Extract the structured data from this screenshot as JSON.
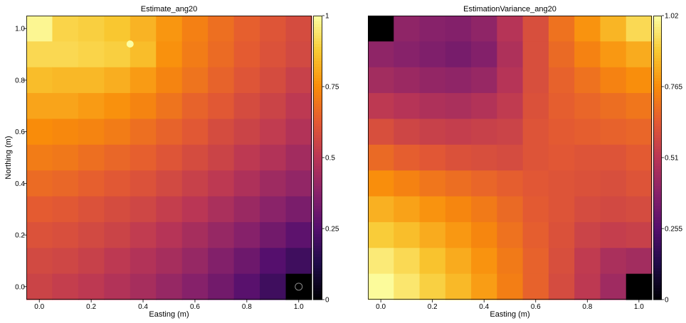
{
  "chart_data": [
    {
      "type": "heatmap",
      "title": "Estimate_ang20",
      "xlabel": "Easting (m)",
      "ylabel": "Northing (m)",
      "colormap": "inferno",
      "x_cell_centers": [
        0.0,
        0.1,
        0.2,
        0.3,
        0.4,
        0.5,
        0.6,
        0.7,
        0.8,
        0.9,
        1.0
      ],
      "y_cell_centers": [
        1.0,
        0.9,
        0.8,
        0.7,
        0.6,
        0.5,
        0.4,
        0.3,
        0.2,
        0.1,
        0.0
      ],
      "xlim": [
        -0.05,
        1.05
      ],
      "ylim": [
        -0.05,
        1.05
      ],
      "x_ticks": [
        0.0,
        0.2,
        0.4,
        0.6,
        0.8,
        1.0
      ],
      "x_tick_labels": [
        "0.0",
        "0.2",
        "0.4",
        "0.6",
        "0.8",
        "1.0"
      ],
      "y_ticks": [
        0.0,
        0.2,
        0.4,
        0.6,
        0.8,
        1.0
      ],
      "y_tick_labels": [
        "0.0",
        "0.2",
        "0.4",
        "0.6",
        "0.8",
        "1.0"
      ],
      "colorbar_range": [
        0,
        1
      ],
      "colorbar_ticks": [
        0,
        0.25,
        0.5,
        0.75,
        1
      ],
      "colorbar_tick_labels": [
        "0",
        "0.25",
        "0.5",
        "0.75",
        "1"
      ],
      "values": [
        [
          0.98,
          0.9,
          0.89,
          0.87,
          0.83,
          0.77,
          0.72,
          0.68,
          0.64,
          0.61,
          0.58
        ],
        [
          0.91,
          0.91,
          0.9,
          0.89,
          0.85,
          0.76,
          0.71,
          0.67,
          0.63,
          0.6,
          0.57
        ],
        [
          0.85,
          0.84,
          0.84,
          0.82,
          0.78,
          0.73,
          0.69,
          0.65,
          0.61,
          0.58,
          0.54
        ],
        [
          0.8,
          0.8,
          0.78,
          0.76,
          0.73,
          0.69,
          0.65,
          0.62,
          0.58,
          0.55,
          0.51
        ],
        [
          0.75,
          0.74,
          0.73,
          0.71,
          0.68,
          0.65,
          0.62,
          0.58,
          0.55,
          0.52,
          0.48
        ],
        [
          0.71,
          0.7,
          0.68,
          0.66,
          0.64,
          0.61,
          0.58,
          0.55,
          0.51,
          0.48,
          0.44
        ],
        [
          0.67,
          0.66,
          0.64,
          0.62,
          0.6,
          0.57,
          0.54,
          0.51,
          0.47,
          0.43,
          0.4
        ],
        [
          0.63,
          0.62,
          0.6,
          0.58,
          0.56,
          0.53,
          0.5,
          0.46,
          0.42,
          0.38,
          0.34
        ],
        [
          0.6,
          0.59,
          0.57,
          0.55,
          0.52,
          0.49,
          0.45,
          0.41,
          0.37,
          0.32,
          0.27
        ],
        [
          0.57,
          0.56,
          0.54,
          0.51,
          0.48,
          0.45,
          0.41,
          0.36,
          0.31,
          0.25,
          0.2
        ],
        [
          0.55,
          0.53,
          0.51,
          0.48,
          0.45,
          0.41,
          0.37,
          0.32,
          0.26,
          0.2,
          null
        ]
      ],
      "markers": [
        {
          "x": 0.35,
          "y": 0.94,
          "style": "filled",
          "color": "#fcffa4"
        },
        {
          "x": 1.0,
          "y": 0.0,
          "style": "hollow",
          "color": "#888888"
        }
      ]
    },
    {
      "type": "heatmap",
      "title": "EstimationVariance_ang20",
      "xlabel": "Easting (m)",
      "ylabel": "",
      "colormap": "inferno",
      "x_cell_centers": [
        0.0,
        0.1,
        0.2,
        0.3,
        0.4,
        0.5,
        0.6,
        0.7,
        0.8,
        0.9,
        1.0
      ],
      "y_cell_centers": [
        1.0,
        0.9,
        0.8,
        0.7,
        0.6,
        0.5,
        0.4,
        0.3,
        0.2,
        0.1,
        0.0
      ],
      "xlim": [
        -0.05,
        1.05
      ],
      "ylim": [
        -0.05,
        1.05
      ],
      "x_ticks": [
        0.0,
        0.2,
        0.4,
        0.6,
        0.8,
        1.0
      ],
      "x_tick_labels": [
        "0.0",
        "0.2",
        "0.4",
        "0.6",
        "0.8",
        "1.0"
      ],
      "y_ticks": [],
      "y_tick_labels": [],
      "colorbar_range": [
        0,
        1.02
      ],
      "colorbar_ticks": [
        0,
        0.255,
        0.51,
        0.765,
        1.02
      ],
      "colorbar_tick_labels": [
        "0",
        "0.255",
        "0.51",
        "0.765",
        "1.02"
      ],
      "values": [
        [
          null,
          0.4,
          0.38,
          0.37,
          0.4,
          0.5,
          0.6,
          0.7,
          0.78,
          0.85,
          0.93
        ],
        [
          0.4,
          0.38,
          0.36,
          0.34,
          0.37,
          0.48,
          0.6,
          0.68,
          0.74,
          0.79,
          0.83
        ],
        [
          0.45,
          0.43,
          0.41,
          0.4,
          0.42,
          0.5,
          0.6,
          0.66,
          0.7,
          0.74,
          0.77
        ],
        [
          0.52,
          0.5,
          0.48,
          0.47,
          0.49,
          0.53,
          0.61,
          0.65,
          0.67,
          0.69,
          0.71
        ],
        [
          0.6,
          0.57,
          0.55,
          0.54,
          0.55,
          0.56,
          0.62,
          0.64,
          0.65,
          0.66,
          0.67
        ],
        [
          0.68,
          0.65,
          0.63,
          0.61,
          0.6,
          0.59,
          0.62,
          0.63,
          0.62,
          0.62,
          0.64
        ],
        [
          0.77,
          0.74,
          0.71,
          0.69,
          0.67,
          0.65,
          0.63,
          0.62,
          0.61,
          0.6,
          0.62
        ],
        [
          0.84,
          0.81,
          0.78,
          0.75,
          0.72,
          0.68,
          0.64,
          0.62,
          0.59,
          0.58,
          0.59
        ],
        [
          0.9,
          0.87,
          0.83,
          0.79,
          0.75,
          0.7,
          0.65,
          0.61,
          0.56,
          0.54,
          0.55
        ],
        [
          0.97,
          0.93,
          0.88,
          0.83,
          0.78,
          0.72,
          0.66,
          0.6,
          0.53,
          0.47,
          0.45
        ],
        [
          1.01,
          0.96,
          0.91,
          0.86,
          0.8,
          0.73,
          0.66,
          0.59,
          0.52,
          0.44,
          null
        ]
      ],
      "markers": []
    }
  ]
}
